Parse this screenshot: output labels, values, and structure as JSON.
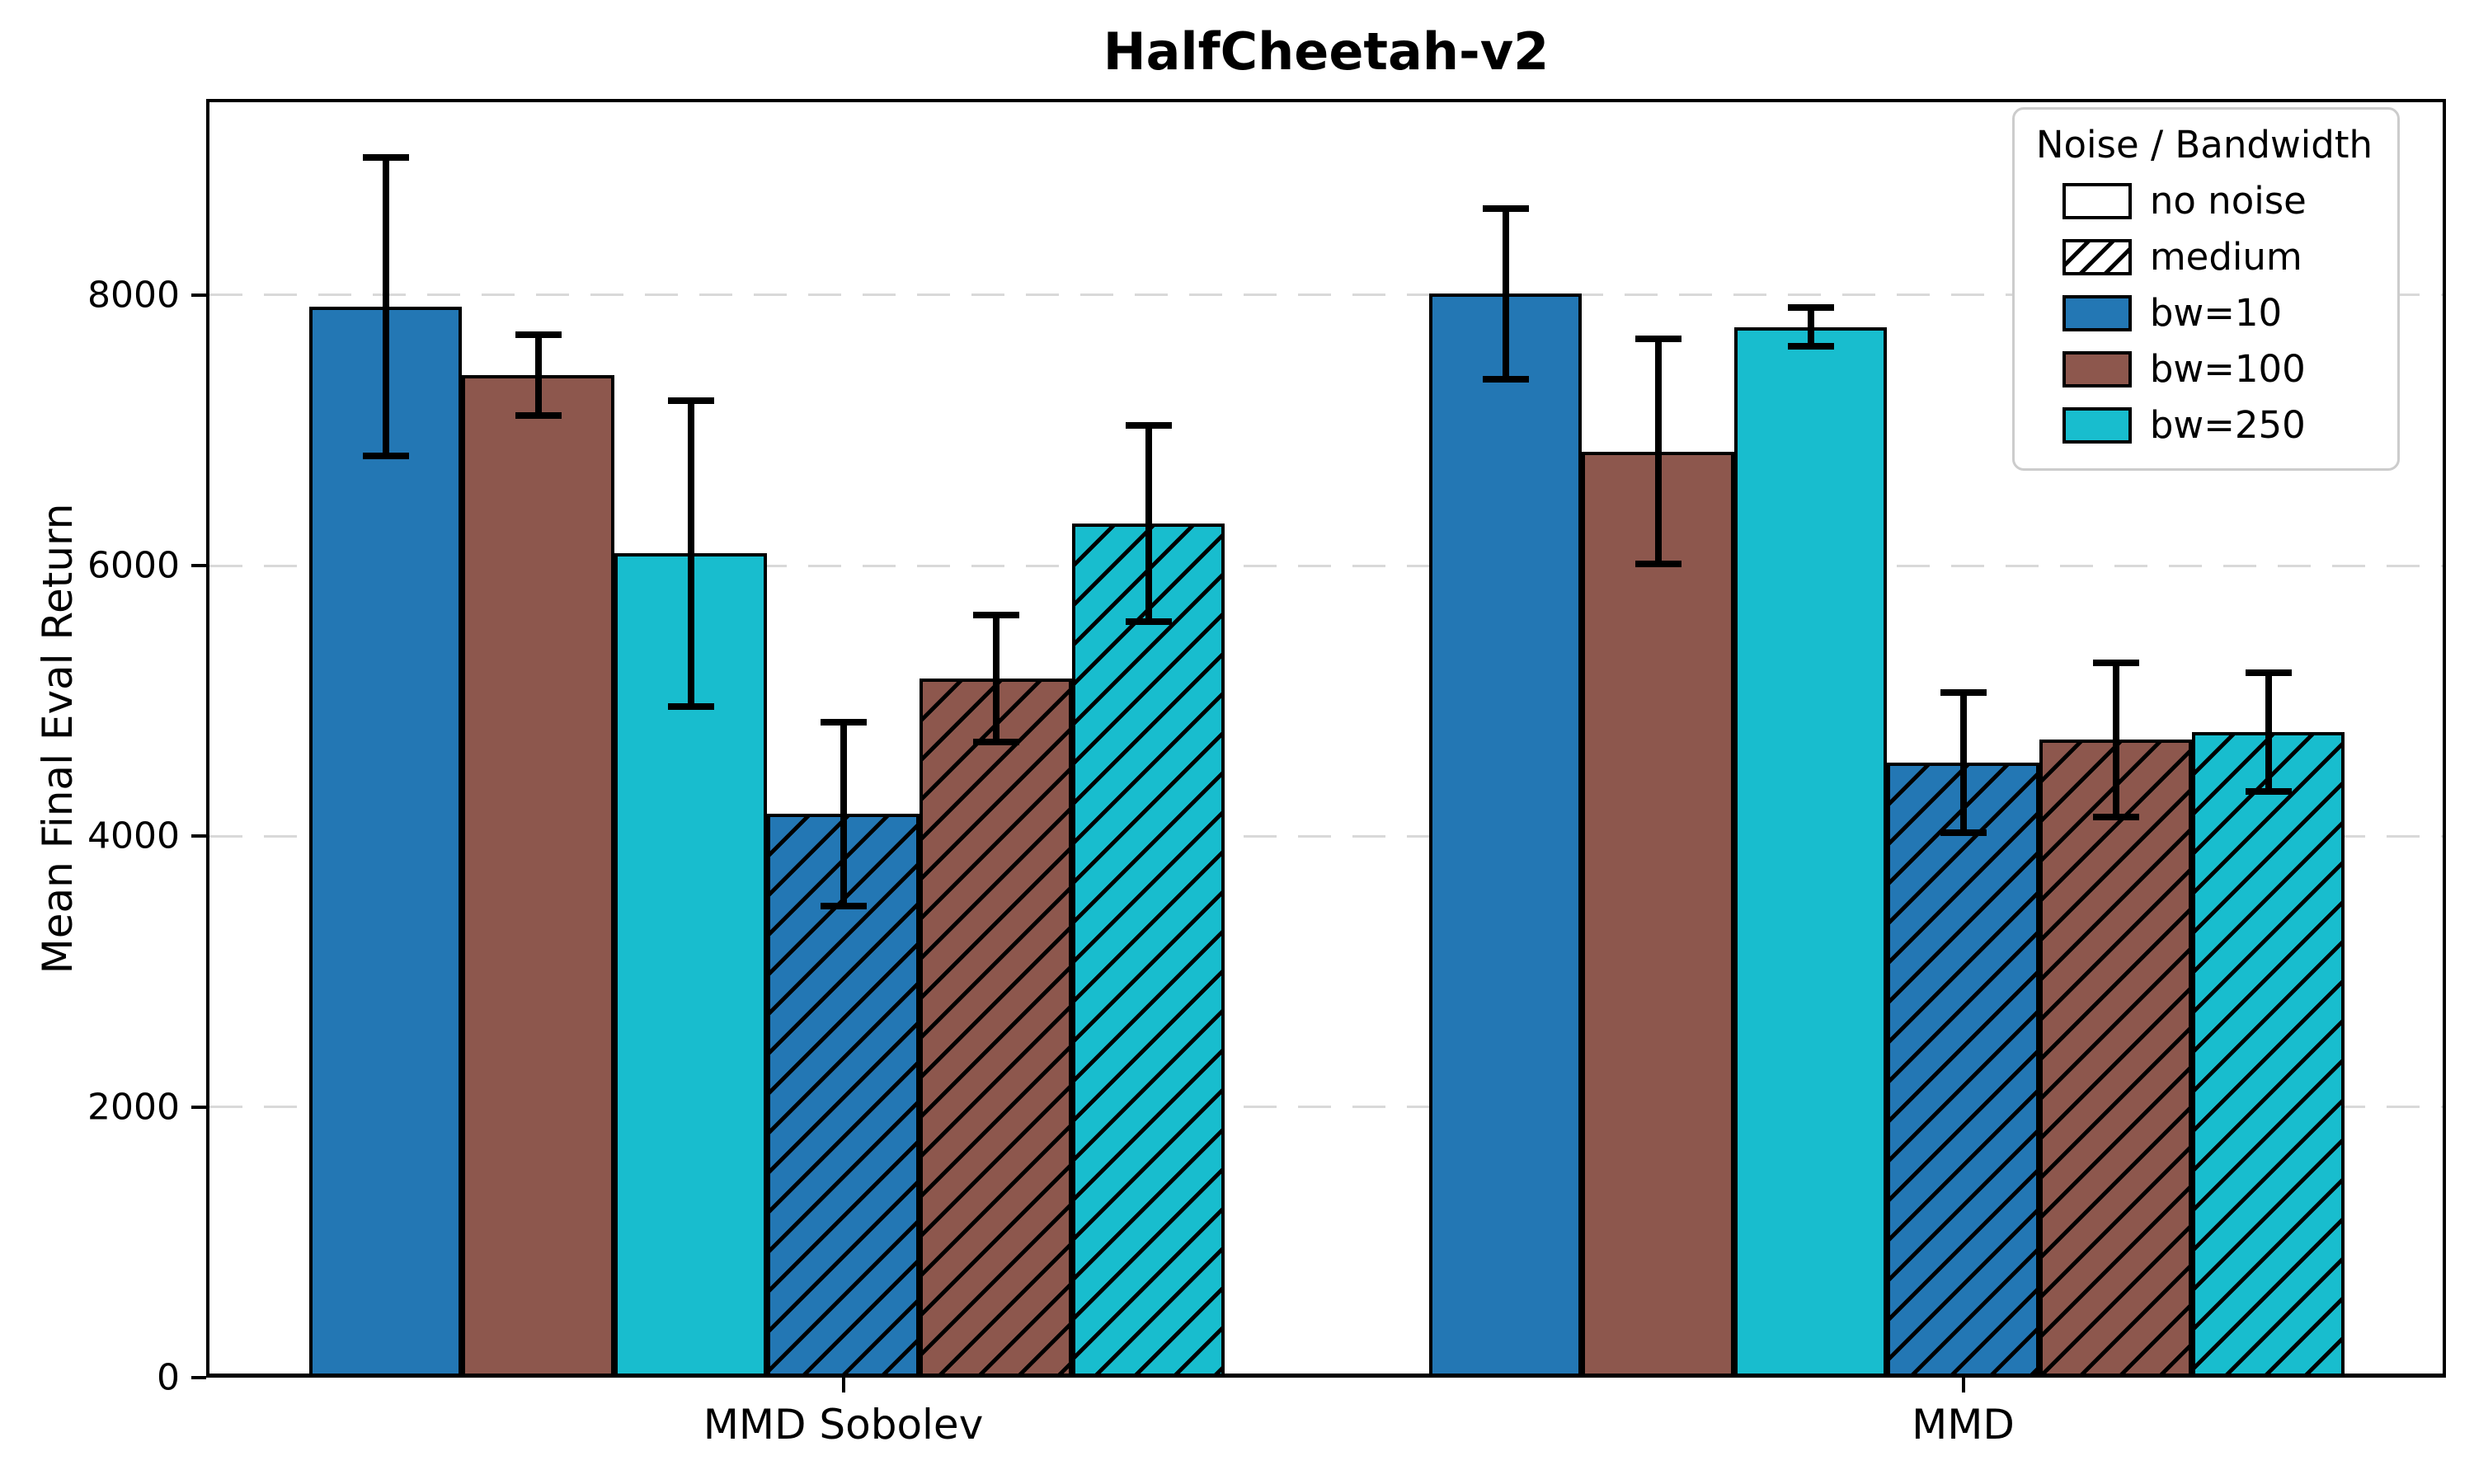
{
  "chart_data": {
    "type": "bar",
    "title": "HalfCheetah-v2",
    "ylabel": "Mean Final Eval Return",
    "xlabel": "",
    "categories": [
      "MMD Sobolev",
      "MMD"
    ],
    "ylim": [
      0,
      9450
    ],
    "yticks": [
      0,
      2000,
      4000,
      6000,
      8000
    ],
    "grid": "y-dashed",
    "colors": {
      "bw10": "#2377b4",
      "bw100": "#8d574d",
      "bw250": "#18bdce",
      "grid": "#d9d9d9",
      "edge": "#000000",
      "legend_border": "#cccccc"
    },
    "legend": {
      "title": "Noise / Bandwidth",
      "position": "upper right",
      "items": [
        {
          "label": "no noise",
          "fill": "#ffffff",
          "hatch": false
        },
        {
          "label": "medium",
          "fill": "#ffffff",
          "hatch": true
        },
        {
          "label": "bw=10",
          "fill": "#2377b4",
          "hatch": false
        },
        {
          "label": "bw=100",
          "fill": "#8d574d",
          "hatch": false
        },
        {
          "label": "bw=250",
          "fill": "#18bdce",
          "hatch": false
        }
      ]
    },
    "series": [
      {
        "name": "no noise / bw=10",
        "color": "#2377b4",
        "hatch": false,
        "values": [
          7915,
          8010
        ],
        "errors": [
          1105,
          630
        ]
      },
      {
        "name": "no noise / bw=100",
        "color": "#8d574d",
        "hatch": false,
        "values": [
          7410,
          6845
        ],
        "errors": [
          300,
          830
        ]
      },
      {
        "name": "no noise / bw=250",
        "color": "#18bdce",
        "hatch": false,
        "values": [
          6090,
          7765
        ],
        "errors": [
          1130,
          145
        ]
      },
      {
        "name": "medium / bw=10",
        "color": "#2377b4",
        "hatch": true,
        "values": [
          4165,
          4545
        ],
        "errors": [
          680,
          520
        ]
      },
      {
        "name": "medium / bw=100",
        "color": "#8d574d",
        "hatch": true,
        "values": [
          5165,
          4715
        ],
        "errors": [
          470,
          570
        ]
      },
      {
        "name": "medium / bw=250",
        "color": "#18bdce",
        "hatch": true,
        "values": [
          6315,
          4770
        ],
        "errors": [
          725,
          440
        ]
      }
    ]
  }
}
